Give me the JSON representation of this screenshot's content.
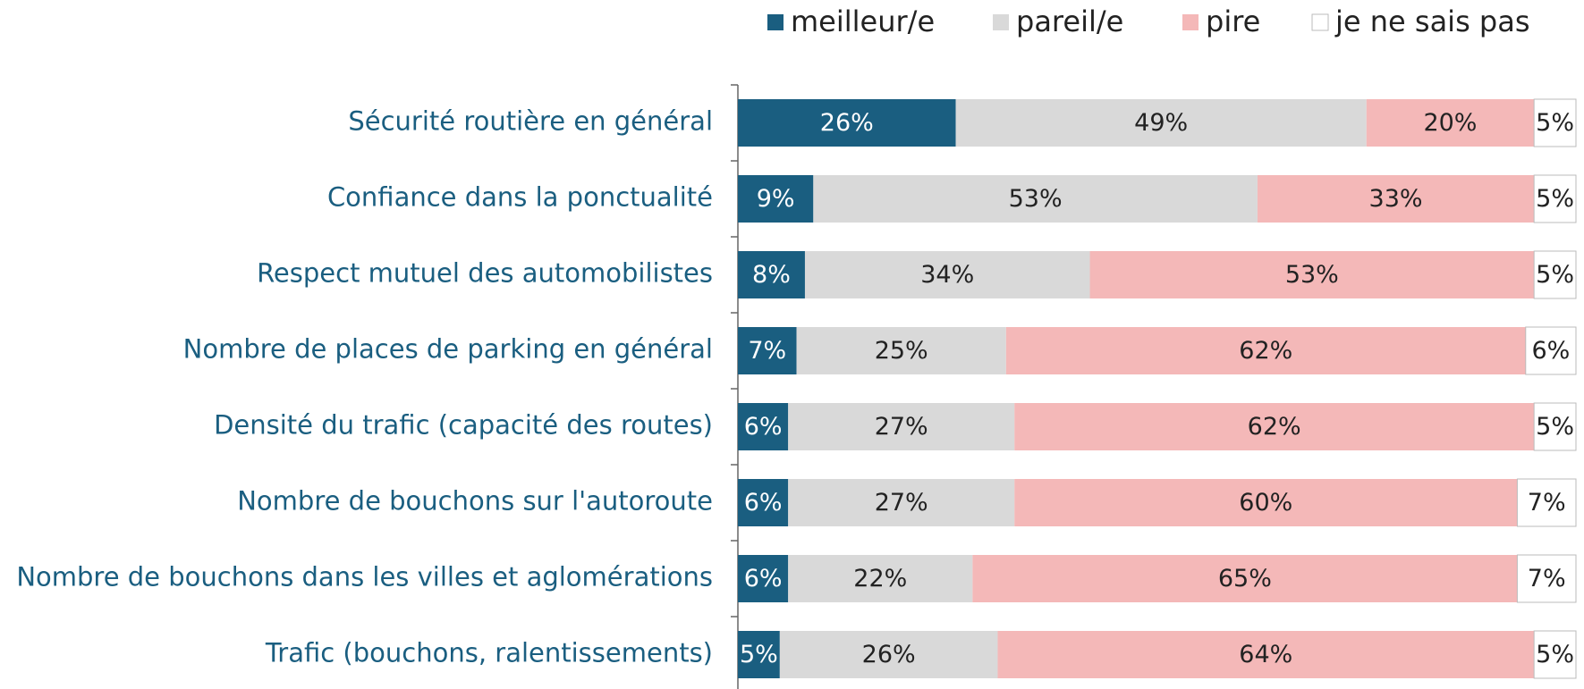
{
  "chart_data": {
    "type": "stacked-barh",
    "categories": [
      "Sécurité routière en général",
      "Confiance dans la ponctualité",
      "Respect mutuel des automobilistes",
      "Nombre de places de parking en général",
      "Densité du trafic (capacité des routes)",
      "Nombre de bouchons sur l'autoroute",
      "Nombre de bouchons dans les villes et aglomérations",
      "Trafic (bouchons, ralentissements)"
    ],
    "series": [
      {
        "name": "meilleur/e",
        "color": "#1a5e80",
        "values": [
          26,
          9,
          8,
          7,
          6,
          6,
          6,
          5
        ],
        "value_labels": [
          "26%",
          "9%",
          "8%",
          "7%",
          "6%",
          "6%",
          "6%",
          "5%"
        ]
      },
      {
        "name": "pareil/e",
        "color": "#d9d9d9",
        "values": [
          49,
          53,
          34,
          25,
          27,
          27,
          22,
          26
        ],
        "value_labels": [
          "49%",
          "53%",
          "34%",
          "25%",
          "27%",
          "27%",
          "22%",
          "26%"
        ]
      },
      {
        "name": "pire",
        "color": "#f4b8b8",
        "values": [
          20,
          33,
          53,
          62,
          62,
          60,
          65,
          64
        ],
        "value_labels": [
          "20%",
          "33%",
          "53%",
          "62%",
          "62%",
          "60%",
          "65%",
          "64%"
        ]
      },
      {
        "name": "je ne sais pas",
        "color": "#ffffff",
        "values": [
          5,
          5,
          5,
          6,
          5,
          7,
          7,
          5
        ],
        "value_labels": [
          "5%",
          "5%",
          "5%",
          "6%",
          "5%",
          "7%",
          "7%",
          "5%"
        ]
      }
    ],
    "xlim": [
      0,
      100
    ],
    "legend": "top"
  }
}
